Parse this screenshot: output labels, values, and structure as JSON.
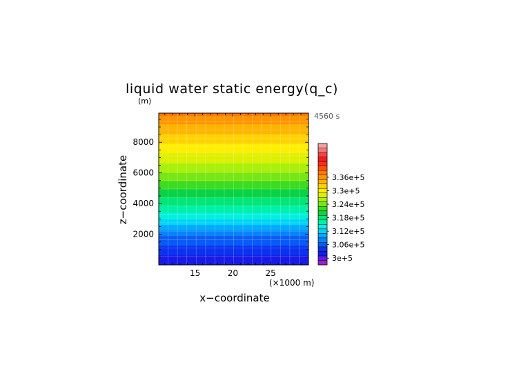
{
  "chart_data": {
    "type": "heatmap",
    "title": "liquid water static energy(q_c)",
    "time_label": "4560 s",
    "xlabel": "x−coordinate",
    "ylabel": "z−coordinate",
    "x_unit": "(×1000 m)",
    "y_unit": "(m)",
    "xlim": [
      10.2,
      30.0
    ],
    "ylim": [
      0,
      9900
    ],
    "x_ticks": [
      15,
      20,
      25
    ],
    "y_ticks": [
      2000,
      4000,
      6000,
      8000
    ],
    "colorbar": {
      "min": 297000,
      "step": 2000,
      "labels": [
        {
          "value": 300000,
          "text": "3e+5"
        },
        {
          "value": 306000,
          "text": "3.06e+5"
        },
        {
          "value": 312000,
          "text": "3.12e+5"
        },
        {
          "value": 318000,
          "text": "3.18e+5"
        },
        {
          "value": 324000,
          "text": "3.24e+5"
        },
        {
          "value": 330000,
          "text": "3.3e+5"
        },
        {
          "value": 336000,
          "text": "3.36e+5"
        }
      ],
      "colors": [
        "#a020c0",
        "#5a1ee6",
        "#1a1ae6",
        "#0a32f0",
        "#0a5af5",
        "#0a82fa",
        "#00aaff",
        "#00d2f5",
        "#00f0e0",
        "#00f0a8",
        "#00e678",
        "#0ad246",
        "#3cdc1e",
        "#78e614",
        "#aaf00a",
        "#dcf000",
        "#ffee00",
        "#ffd200",
        "#ffb400",
        "#ff9600",
        "#ff7800",
        "#ff5000",
        "#ff2d14",
        "#f01e1e",
        "#f54646",
        "#f57878",
        "#f5a0a0"
      ]
    },
    "profile": {
      "z": [
        0,
        500,
        1000,
        1500,
        2000,
        2500,
        3000,
        3500,
        4000,
        4500,
        5000,
        5500,
        6000,
        6500,
        7000,
        7500,
        8000,
        8500,
        9000,
        9500,
        9900
      ],
      "value": [
        301000,
        302600,
        304100,
        305600,
        307400,
        310200,
        313000,
        315300,
        317400,
        319300,
        321300,
        323000,
        324800,
        326400,
        327900,
        329600,
        331200,
        332800,
        334400,
        336000,
        338000
      ]
    }
  }
}
